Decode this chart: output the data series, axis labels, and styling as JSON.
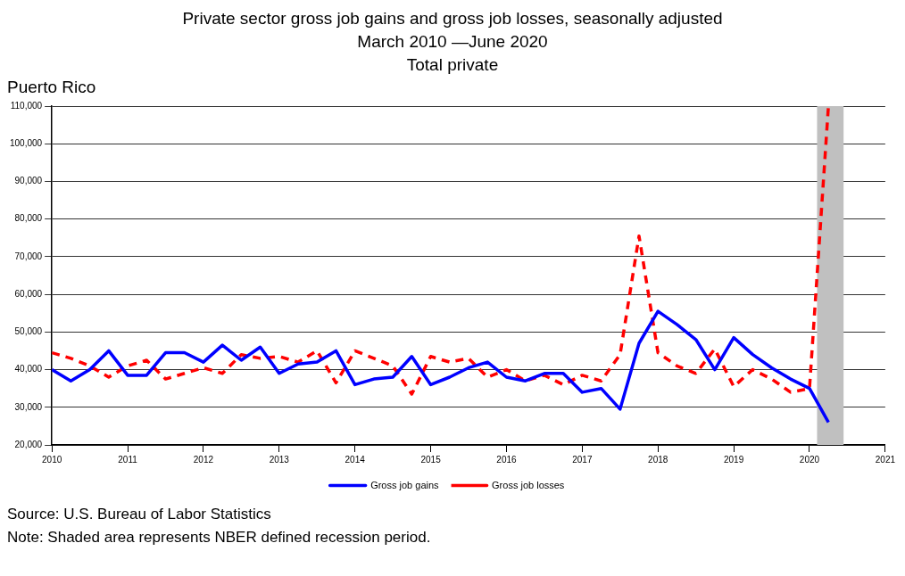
{
  "chart_data": {
    "type": "line",
    "title": "Private sector gross job gains and gross job losses, seasonally adjusted",
    "subtitle": "March 2010 —June 2020\nTotal private",
    "ylabel": "Puerto Rico",
    "x": [
      2010,
      2010.25,
      2010.5,
      2010.75,
      2011,
      2011.25,
      2011.5,
      2011.75,
      2012,
      2012.25,
      2012.5,
      2012.75,
      2013,
      2013.25,
      2013.5,
      2013.75,
      2014,
      2014.25,
      2014.5,
      2014.75,
      2015,
      2015.25,
      2015.5,
      2015.75,
      2016,
      2016.25,
      2016.5,
      2016.75,
      2017,
      2017.25,
      2017.5,
      2017.75,
      2018,
      2018.25,
      2018.5,
      2018.75,
      2019,
      2019.25,
      2019.5,
      2019.75,
      2020,
      2020.25
    ],
    "series": [
      {
        "name": "Gross job gains",
        "color": "#0000ff",
        "line_style": "solid",
        "values": [
          40000,
          37000,
          40000,
          45000,
          38500,
          38500,
          44500,
          44500,
          42000,
          46500,
          42500,
          46000,
          39000,
          41500,
          42000,
          45000,
          36000,
          37500,
          38000,
          43500,
          36000,
          38000,
          40500,
          42000,
          38000,
          37000,
          39000,
          39000,
          34000,
          35000,
          29500,
          47000,
          55500,
          52000,
          48000,
          40000,
          48500,
          44000,
          40500,
          37500,
          35000,
          26000
        ]
      },
      {
        "name": "Gross job losses",
        "color": "#ff0000",
        "line_style": "dashed",
        "values": [
          44500,
          43000,
          41000,
          38000,
          41000,
          42500,
          37500,
          39000,
          40500,
          39000,
          44000,
          43000,
          43500,
          42000,
          45000,
          36500,
          45000,
          43000,
          41000,
          33500,
          43500,
          42000,
          43000,
          38000,
          40000,
          37000,
          38500,
          36000,
          38500,
          37000,
          44000,
          75500,
          44500,
          41000,
          39000,
          45500,
          35500,
          40000,
          37500,
          34000,
          35000,
          110000
        ]
      }
    ],
    "xlim": [
      2010,
      2021
    ],
    "xticks": [
      2010,
      2011,
      2012,
      2013,
      2014,
      2015,
      2016,
      2017,
      2018,
      2019,
      2020,
      2021
    ],
    "ylim": [
      20000,
      110000
    ],
    "yticks": [
      {
        "value": 20000,
        "label": "20,000"
      },
      {
        "value": 30000,
        "label": "30,000"
      },
      {
        "value": 40000,
        "label": "40,000"
      },
      {
        "value": 50000,
        "label": "50,000"
      },
      {
        "value": 60000,
        "label": "60,000"
      },
      {
        "value": 70000,
        "label": "70,000"
      },
      {
        "value": 80000,
        "label": "80,000"
      },
      {
        "value": 90000,
        "label": "90,000"
      },
      {
        "value": 100000,
        "label": "100,000"
      },
      {
        "value": 110000,
        "label": "110,000"
      }
    ],
    "bands": [
      {
        "axis": "x",
        "from": 2020.1,
        "to": 2020.45,
        "color": "#c0c0c0"
      }
    ],
    "grid": "y",
    "legend": "bottom",
    "marker": "none",
    "annotations": [
      "Source: U.S. Bureau of Labor Statistics",
      "Note: Shaded area represents NBER defined recession period."
    ]
  }
}
